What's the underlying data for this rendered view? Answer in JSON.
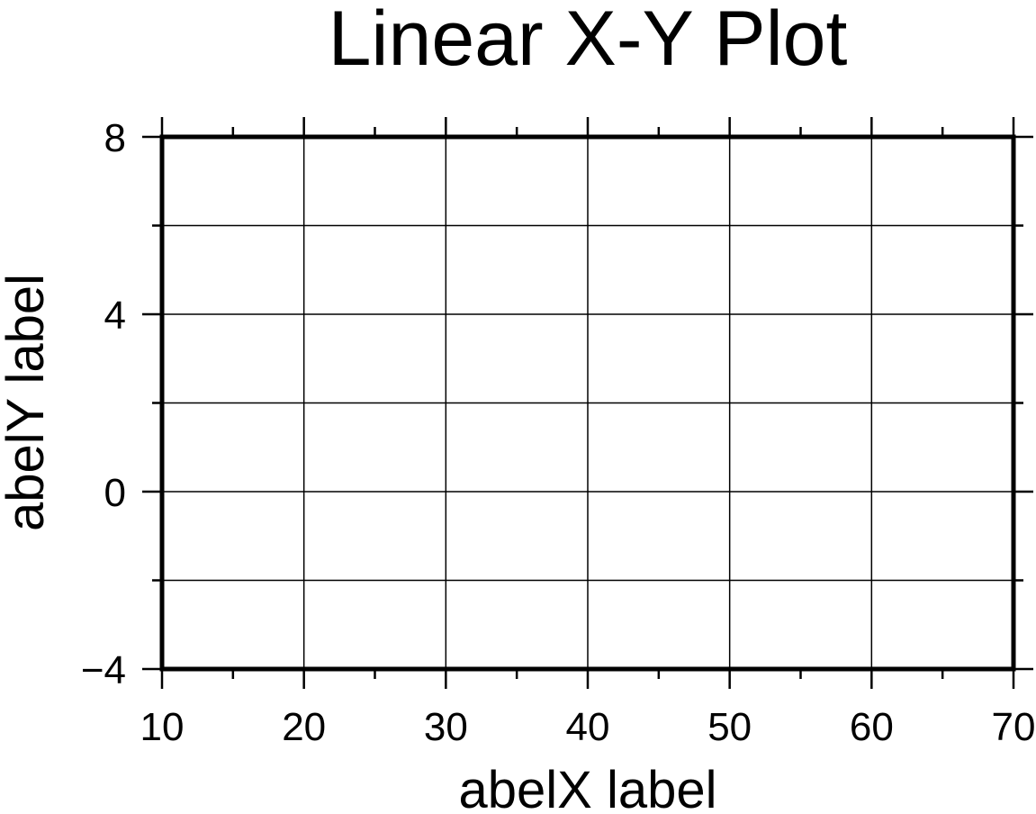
{
  "chart_data": {
    "type": "scatter",
    "title": "Linear X-Y Plot",
    "xlabel": "abelX label",
    "ylabel": "abelY label",
    "xlim": [
      10,
      70
    ],
    "ylim": [
      -4,
      8
    ],
    "x_ticks": [
      10,
      20,
      30,
      40,
      50,
      60,
      70
    ],
    "x_tick_labels": [
      "10",
      "20",
      "30",
      "40",
      "50",
      "60",
      "70"
    ],
    "y_ticks": [
      -4,
      0,
      4,
      8
    ],
    "y_tick_labels": [
      "−4",
      "0",
      "4",
      "8"
    ],
    "x_minor_ticks": [
      15,
      25,
      35,
      45,
      55,
      65
    ],
    "y_minor_ticks": [
      -2,
      2,
      6
    ],
    "x_gridlines": [
      20,
      30,
      40,
      50,
      60
    ],
    "y_gridlines": [
      -2,
      0,
      2,
      4,
      6
    ],
    "grid": true,
    "series": [],
    "colors": {
      "frame": "#000000",
      "grid": "#000000",
      "background": "#ffffff"
    }
  }
}
